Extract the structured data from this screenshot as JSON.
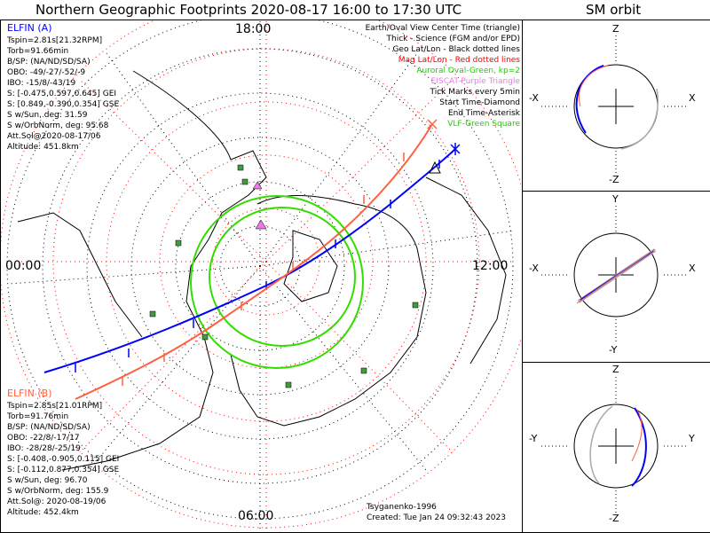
{
  "title": "Northern Geographic Footprints 2020-08-17 16:00 to 17:30 UTC",
  "sm_orbit_title": "SM orbit",
  "mlt_labels": {
    "top": "18:00",
    "left": "00:00",
    "right": "12:00",
    "bottom": "06:00"
  },
  "elfin_a": {
    "name": "ELFIN (A)",
    "color": "#0000ff",
    "lines": [
      "Tspin=2.81s[21.32RPM]",
      "Torb=91.66min",
      "B/SP: (NA/ND/SD/SA)",
      "OBO: -49/-27/-52/-9",
      "IBO: -15/8/-43/19",
      "S: [-0.475,0.597,0.645] GEI",
      "S: [0.849,-0.390,0.354] GSE",
      "S w/Sun, deg: 31.59",
      "S w/OrbNorm, deg: 95.68",
      "Att.Sol@2020-08-17/06",
      "Altitude: 451.8km"
    ]
  },
  "elfin_b": {
    "name": "ELFIN (B)",
    "color": "#ff6040",
    "lines": [
      "Tspin=2.85s[21.01RPM]",
      "Torb=91.76min",
      "B/SP: (NA/ND/SD/SA)",
      "OBO: -22/8/-17/17",
      "IBO: -28/28/-25/19",
      "S: [-0.408,-0.905,0.115] GEI",
      "S: [-0.112,0.877,0.354] GSE",
      "S w/Sun, deg: 96.70",
      "S w/OrbNorm, deg: 155.9",
      "Att.Sol@: 2020-08-19/06",
      "Altitude: 452.4km"
    ]
  },
  "legend": [
    {
      "text": "Earth/Oval View Center Time (triangle)",
      "color": "#000000"
    },
    {
      "text": "Thick - Science (FGM and/or EPD)",
      "color": "#000000"
    },
    {
      "text": "Geo Lat/Lon - Black dotted lines",
      "color": "#000000"
    },
    {
      "text": "Mag Lat/Lon - Red dotted lines",
      "color": "#ff0000"
    },
    {
      "text": "Auroral Oval-Green, kp=2",
      "color": "#22cc00"
    },
    {
      "text": "EISCAT-Purple Triangle",
      "color": "#ee77ee"
    },
    {
      "text": "Tick Marks every 5min",
      "color": "#000000"
    },
    {
      "text": "Start Time-Diamond",
      "color": "#000000"
    },
    {
      "text": "End Time-Asterisk",
      "color": "#000000"
    },
    {
      "text": "VLF-Green Square",
      "color": "#22cc00"
    }
  ],
  "footer": {
    "model": "Tsyganenko-1996",
    "created": "Created: Tue Jan 24 09:32:43 2023"
  },
  "sm_panels": [
    {
      "top": "Z",
      "bottom": "-Z",
      "left": "-X",
      "right": "X"
    },
    {
      "top": "Y",
      "bottom": "-Y",
      "left": "-X",
      "right": "X"
    },
    {
      "top": "Z",
      "bottom": "-Z",
      "left": "-Y",
      "right": "Y"
    }
  ]
}
